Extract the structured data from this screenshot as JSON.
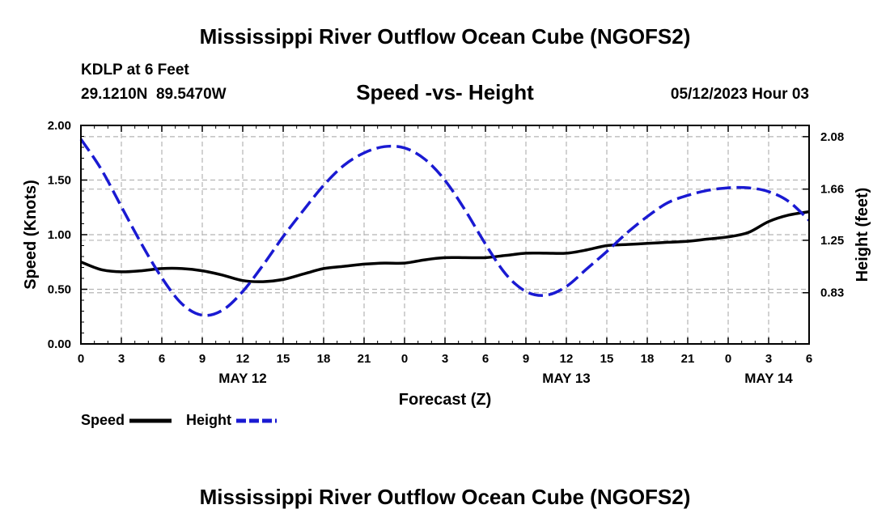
{
  "header": {
    "title": "Mississippi River Outflow Ocean Cube (NGOFS2)",
    "station": "KDLP at 6 Feet",
    "coords": "29.1210N  89.5470W",
    "datetime": "05/12/2023 Hour 03"
  },
  "footer": {
    "title": "Mississippi River Outflow Ocean Cube (NGOFS2)"
  },
  "chart_data": {
    "type": "line",
    "title": "Speed -vs- Height",
    "xlabel": "Forecast (Z)",
    "ylabel_left": "Speed (Knots)",
    "ylabel_right": "Height (feet)",
    "x_unit": "forecast hours",
    "xlim": [
      0,
      54
    ],
    "x_ticks": [
      0,
      3,
      6,
      9,
      12,
      15,
      18,
      21,
      24,
      27,
      30,
      33,
      36,
      39,
      42,
      45,
      48,
      51,
      54
    ],
    "x_tick_labels": [
      "0",
      "3",
      "6",
      "9",
      "12",
      "15",
      "18",
      "21",
      "0",
      "3",
      "6",
      "9",
      "12",
      "15",
      "18",
      "21",
      "0",
      "3",
      "6"
    ],
    "date_labels": [
      {
        "x": 12,
        "label": "MAY 12"
      },
      {
        "x": 36,
        "label": "MAY 13"
      },
      {
        "x": 51,
        "label": "MAY 14"
      }
    ],
    "ylim_left": [
      0,
      2
    ],
    "y_ticks_left": [
      0,
      0.5,
      1,
      1.5,
      2
    ],
    "y_tick_labels_left": [
      "0.00",
      "0.50",
      "1.00",
      "1.50",
      "2.00"
    ],
    "ylim_right": [
      0.42,
      2.17
    ],
    "y_ticks_right": [
      0.83,
      1.25,
      1.66,
      2.08
    ],
    "y_tick_labels_right": [
      "0.83",
      "1.25",
      "1.66",
      "2.08"
    ],
    "grid": true,
    "legend": {
      "placement": "bottom-left"
    },
    "series": [
      {
        "name": "Speed",
        "axis": "left",
        "color": "#000000",
        "style": "solid",
        "x": [
          0,
          1.5,
          3,
          4.5,
          6,
          7.5,
          9,
          10.5,
          12,
          13.5,
          15,
          16.5,
          18,
          19.5,
          21,
          22.5,
          24,
          25.5,
          27,
          28.5,
          30,
          31.5,
          33,
          34.5,
          36,
          37.5,
          39,
          40.5,
          42,
          43.5,
          45,
          46.5,
          48,
          49.5,
          51,
          52.5,
          54
        ],
        "values": [
          0.75,
          0.68,
          0.66,
          0.67,
          0.69,
          0.69,
          0.67,
          0.63,
          0.58,
          0.57,
          0.59,
          0.64,
          0.69,
          0.71,
          0.73,
          0.74,
          0.74,
          0.77,
          0.79,
          0.79,
          0.79,
          0.81,
          0.83,
          0.83,
          0.83,
          0.86,
          0.9,
          0.91,
          0.92,
          0.93,
          0.94,
          0.96,
          0.98,
          1.02,
          1.12,
          1.18,
          1.21
        ]
      },
      {
        "name": "Height",
        "axis": "right",
        "color": "#1a1ad2",
        "style": "dashed",
        "x": [
          0,
          1.5,
          3,
          4.5,
          6,
          7.5,
          9,
          10.5,
          12,
          13.5,
          15,
          16.5,
          18,
          19.5,
          21,
          22.5,
          24,
          25.5,
          27,
          28.5,
          30,
          31.5,
          33,
          34.5,
          36,
          37.5,
          39,
          40.5,
          42,
          43.5,
          45,
          46.5,
          48,
          49.5,
          51,
          52.5,
          54
        ],
        "values": [
          2.06,
          1.82,
          1.52,
          1.22,
          0.95,
          0.74,
          0.65,
          0.69,
          0.84,
          1.05,
          1.28,
          1.49,
          1.69,
          1.85,
          1.95,
          2.0,
          1.99,
          1.9,
          1.73,
          1.49,
          1.22,
          0.98,
          0.84,
          0.81,
          0.88,
          1.02,
          1.16,
          1.31,
          1.44,
          1.55,
          1.61,
          1.65,
          1.67,
          1.67,
          1.64,
          1.56,
          1.41
        ]
      }
    ]
  }
}
